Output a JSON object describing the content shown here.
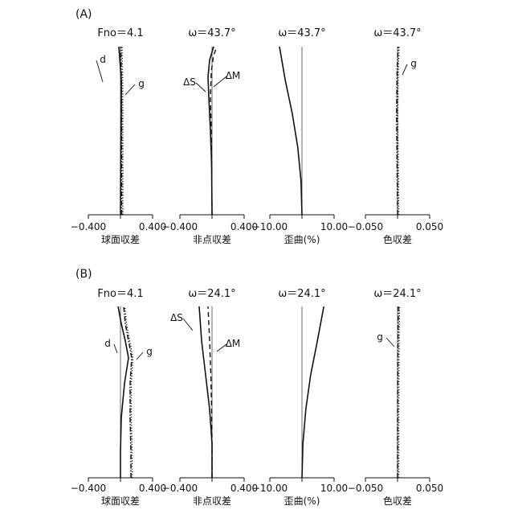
{
  "panel_labels": [
    "(A)",
    "(B)"
  ],
  "chart_data": [
    {
      "panel": "(A)",
      "type": "line",
      "title": "Fno＝4.1",
      "xlabel": "球面収差",
      "xlim": [
        -0.4,
        0.4
      ],
      "tick_labels": [
        "−0.400",
        "0.400"
      ],
      "series": [
        {
          "name": "d",
          "style": "solid",
          "points": [
            [
              0,
              0
            ],
            [
              0.002,
              0.2
            ],
            [
              0.005,
              0.4
            ],
            [
              0.01,
              0.6
            ],
            [
              0.01,
              0.8
            ],
            [
              -0.005,
              0.9
            ],
            [
              -0.02,
              1.0
            ]
          ]
        },
        {
          "name": "g",
          "style": "dashdot",
          "points": [
            [
              0.015,
              0
            ],
            [
              0.015,
              0.2
            ],
            [
              0.015,
              0.4
            ],
            [
              0.015,
              0.6
            ],
            [
              0.012,
              0.8
            ],
            [
              0.008,
              0.9
            ],
            [
              0.005,
              1.0
            ]
          ]
        }
      ],
      "labels": [
        "d",
        "g"
      ]
    },
    {
      "panel": "(A)",
      "type": "line",
      "title": "ω＝43.7°",
      "xlabel": "非点収差",
      "xlim": [
        -0.4,
        0.4
      ],
      "tick_labels": [
        "−0.400",
        "0.400"
      ],
      "series": [
        {
          "name": "ΔS",
          "style": "solid",
          "points": [
            [
              0,
              0
            ],
            [
              -0.005,
              0.3
            ],
            [
              -0.02,
              0.5
            ],
            [
              -0.04,
              0.7
            ],
            [
              -0.05,
              0.82
            ],
            [
              -0.03,
              0.92
            ],
            [
              0.02,
              1.0
            ]
          ]
        },
        {
          "name": "ΔM",
          "style": "dash",
          "points": [
            [
              0,
              0
            ],
            [
              -0.005,
              0.3
            ],
            [
              -0.01,
              0.5
            ],
            [
              -0.02,
              0.7
            ],
            [
              -0.01,
              0.85
            ],
            [
              0.02,
              0.95
            ],
            [
              0.06,
              1.0
            ]
          ]
        }
      ],
      "labels": [
        "ΔS",
        "ΔM"
      ]
    },
    {
      "panel": "(A)",
      "type": "line",
      "title": "ω＝43.7°",
      "xlabel": "歪曲(%)",
      "xlim": [
        -10,
        10
      ],
      "tick_labels": [
        "−10.00",
        "10.00"
      ],
      "series": [
        {
          "name": "",
          "style": "solid",
          "points": [
            [
              0,
              0
            ],
            [
              -0.3,
              0.2
            ],
            [
              -1.3,
              0.4
            ],
            [
              -3.0,
              0.6
            ],
            [
              -5.2,
              0.8
            ],
            [
              -7.0,
              1.0
            ]
          ]
        }
      ]
    },
    {
      "panel": "(A)",
      "type": "line",
      "title": "ω＝43.7°",
      "xlabel": "色収差",
      "xlim": [
        -0.05,
        0.05
      ],
      "tick_labels": [
        "−0.050",
        "0.050"
      ],
      "series": [
        {
          "name": "g",
          "style": "dashdot",
          "points": [
            [
              0,
              0
            ],
            [
              -0.0008,
              0.3
            ],
            [
              -0.0015,
              0.6
            ],
            [
              -0.0008,
              0.85
            ],
            [
              0.0008,
              1.0
            ]
          ]
        }
      ],
      "labels": [
        "g"
      ]
    },
    {
      "panel": "(B)",
      "type": "line",
      "title": "Fno＝4.1",
      "xlabel": "球面収差",
      "xlim": [
        -0.4,
        0.4
      ],
      "tick_labels": [
        "−0.400",
        "0.400"
      ],
      "series": [
        {
          "name": "d",
          "style": "solid",
          "points": [
            [
              0,
              0
            ],
            [
              0,
              0.15
            ],
            [
              0.01,
              0.35
            ],
            [
              0.05,
              0.55
            ],
            [
              0.1,
              0.7
            ],
            [
              0.06,
              0.8
            ],
            [
              0.01,
              0.9
            ],
            [
              -0.03,
              1.0
            ]
          ]
        },
        {
          "name": "g",
          "style": "dashdot",
          "points": [
            [
              0.13,
              0
            ],
            [
              0.13,
              0.15
            ],
            [
              0.12,
              0.35
            ],
            [
              0.12,
              0.55
            ],
            [
              0.14,
              0.7
            ],
            [
              0.1,
              0.8
            ],
            [
              0.06,
              0.9
            ],
            [
              0.04,
              1.0
            ]
          ]
        }
      ],
      "labels": [
        "d",
        "g"
      ]
    },
    {
      "panel": "(B)",
      "type": "line",
      "title": "ω＝24.1°",
      "xlabel": "非点収差",
      "xlim": [
        -0.4,
        0.4
      ],
      "tick_labels": [
        "−0.400",
        "0.400"
      ],
      "series": [
        {
          "name": "ΔS",
          "style": "solid",
          "points": [
            [
              0,
              0
            ],
            [
              0,
              0.2
            ],
            [
              -0.03,
              0.4
            ],
            [
              -0.08,
              0.6
            ],
            [
              -0.13,
              0.8
            ],
            [
              -0.16,
              1.0
            ]
          ]
        },
        {
          "name": "ΔM",
          "style": "dash",
          "points": [
            [
              0,
              0
            ],
            [
              0,
              0.2
            ],
            [
              -0.005,
              0.4
            ],
            [
              -0.015,
              0.6
            ],
            [
              -0.03,
              0.8
            ],
            [
              -0.05,
              1.0
            ]
          ]
        }
      ],
      "labels": [
        "ΔS",
        "ΔM"
      ]
    },
    {
      "panel": "(B)",
      "type": "line",
      "title": "ω＝24.1°",
      "xlabel": "歪曲(%)",
      "xlim": [
        -10,
        10
      ],
      "tick_labels": [
        "−10.00",
        "10.00"
      ],
      "series": [
        {
          "name": "",
          "style": "solid",
          "points": [
            [
              0,
              0
            ],
            [
              0.3,
              0.2
            ],
            [
              1.2,
              0.4
            ],
            [
              2.7,
              0.6
            ],
            [
              4.8,
              0.8
            ],
            [
              6.8,
              1.0
            ]
          ]
        }
      ]
    },
    {
      "panel": "(B)",
      "type": "line",
      "title": "ω＝24.1°",
      "xlabel": "色収差",
      "xlim": [
        -0.05,
        0.05
      ],
      "tick_labels": [
        "−0.050",
        "0.050"
      ],
      "series": [
        {
          "name": "g",
          "style": "dashdot",
          "points": [
            [
              0,
              0
            ],
            [
              0,
              0.3
            ],
            [
              0.0003,
              0.6
            ],
            [
              0.0008,
              0.85
            ],
            [
              0.0012,
              1.0
            ]
          ]
        }
      ],
      "labels": [
        "g"
      ]
    }
  ]
}
